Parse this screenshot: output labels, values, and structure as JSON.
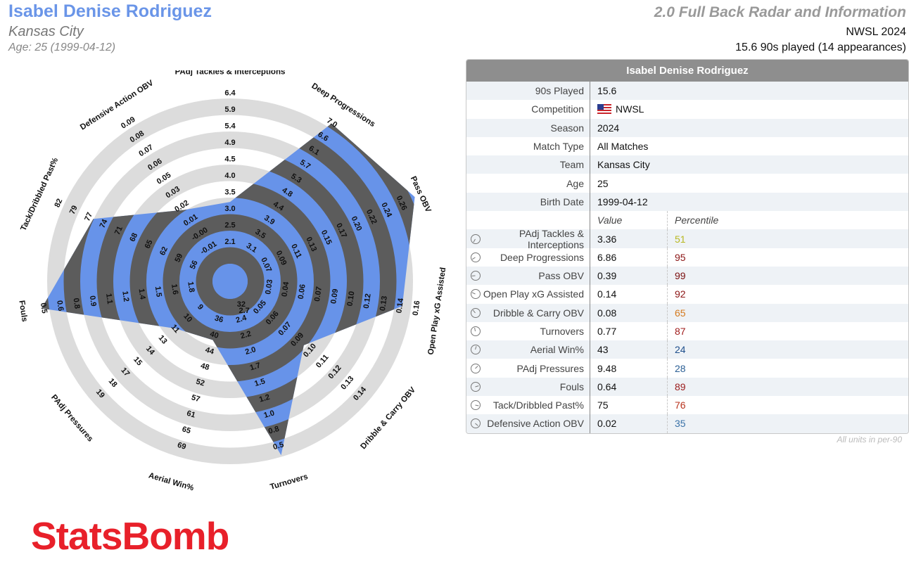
{
  "header": {
    "player_name": "Isabel Denise Rodriguez",
    "team": "Kansas City",
    "age_line": "Age: 25 (1999-04-12)",
    "title": "2.0 Full Back Radar and Information",
    "competition_season": "NWSL 2024",
    "played_line": "15.6 90s played (14 appearances)"
  },
  "colors": {
    "accent": "#6a95e8",
    "radar_fill": "#6793e9",
    "ring_dark": "#5c5c5c",
    "ring_light": "#dcdcdc",
    "logo": "#e8202a"
  },
  "chart_data": {
    "type": "radar",
    "axes": [
      {
        "name": "PAdj Tackles & Interceptions",
        "value": 3.36,
        "ticks": [
          "2.1",
          "2.5",
          "3.0",
          "3.5",
          "4.0",
          "4.5",
          "4.9",
          "5.4",
          "5.9",
          "6.4"
        ]
      },
      {
        "name": "Deep Progressions",
        "value": 6.86,
        "ticks": [
          "3.1",
          "3.5",
          "3.9",
          "4.4",
          "4.8",
          "5.3",
          "5.7",
          "6.1",
          "6.6",
          "7.0"
        ]
      },
      {
        "name": "Pass OBV",
        "value": 0.39,
        "ticks": [
          "0.07",
          "0.09",
          "0.11",
          "0.13",
          "0.15",
          "0.17",
          "0.20",
          "0.22",
          "0.24",
          "0.26"
        ]
      },
      {
        "name": "Open Play xG Assisted",
        "value": 0.14,
        "ticks": [
          "0.03",
          "0.04",
          "0.06",
          "0.07",
          "0.09",
          "0.10",
          "0.12",
          "0.13",
          "0.14",
          "0.16"
        ]
      },
      {
        "name": "Dribble & Carry OBV",
        "value": 0.08,
        "ticks": [
          "0.05",
          "0.06",
          "0.07",
          "0.09",
          "0.10",
          "0.11",
          "0.12",
          "0.13",
          "0.14"
        ]
      },
      {
        "name": "Turnovers",
        "value": 0.77,
        "ticks": [
          "2.4",
          "2.2",
          "2.0",
          "1.7",
          "1.5",
          "1.2",
          "1.0",
          "0.8",
          "0.5"
        ]
      },
      {
        "name": "Aerial Win%",
        "value": 43,
        "ticks": [
          "36",
          "40",
          "44",
          "48",
          "52",
          "57",
          "61",
          "65",
          "69"
        ]
      },
      {
        "name": "PAdj Pressures",
        "value": 9.48,
        "ticks": [
          "9",
          "10",
          "11",
          "13",
          "14",
          "15",
          "17",
          "18",
          "19"
        ]
      },
      {
        "name": "Fouls",
        "value": 0.64,
        "ticks": [
          "1.8",
          "1.6",
          "1.5",
          "1.4",
          "1.2",
          "1.1",
          "0.9",
          "0.8",
          "0.6",
          "0.5"
        ]
      },
      {
        "name": "Tack/Dribbled Past%",
        "value": 75,
        "ticks": [
          "56",
          "59",
          "62",
          "65",
          "68",
          "71",
          "74",
          "77",
          "79",
          "82"
        ]
      },
      {
        "name": "Defensive Action OBV",
        "value": 0.02,
        "ticks": [
          "-0.01",
          "-0.00",
          "0.01",
          "0.02",
          "0.03",
          "0.05",
          "0.06",
          "0.07",
          "0.08",
          "0.09"
        ]
      }
    ],
    "turnovers_inner_ticks": [
      "32",
      "2.7"
    ],
    "fill_levels": [
      0.34,
      0.935,
      1.02,
      0.86,
      0.44,
      0.9,
      0.24,
      0.3,
      0.95,
      0.73,
      0.37
    ]
  },
  "table": {
    "header": "Isabel Denise Rodriguez",
    "info": [
      {
        "label": "90s Played",
        "value": "15.6"
      },
      {
        "label": "Competition",
        "value": "NWSL",
        "flag": true
      },
      {
        "label": "Season",
        "value": "2024"
      },
      {
        "label": "Match Type",
        "value": "All Matches"
      },
      {
        "label": "Team",
        "value": "Kansas City"
      },
      {
        "label": "Age",
        "value": "25"
      },
      {
        "label": "Birth Date",
        "value": "1999-04-12"
      }
    ],
    "col_value": "Value",
    "col_percentile": "Percentile",
    "metrics": [
      {
        "label": "PAdj Tackles & Interceptions",
        "value": "3.36",
        "percentile": "51",
        "color": "#b8b820"
      },
      {
        "label": "Deep Progressions",
        "value": "6.86",
        "percentile": "95",
        "color": "#8b1414"
      },
      {
        "label": "Pass OBV",
        "value": "0.39",
        "percentile": "99",
        "color": "#7a0e0e"
      },
      {
        "label": "Open Play xG Assisted",
        "value": "0.14",
        "percentile": "92",
        "color": "#8b1414"
      },
      {
        "label": "Dribble & Carry OBV",
        "value": "0.08",
        "percentile": "65",
        "color": "#d47a1e"
      },
      {
        "label": "Turnovers",
        "value": "0.77",
        "percentile": "87",
        "color": "#a01c1c"
      },
      {
        "label": "Aerial Win%",
        "value": "43",
        "percentile": "24",
        "color": "#1f4f8c"
      },
      {
        "label": "PAdj Pressures",
        "value": "9.48",
        "percentile": "28",
        "color": "#2b5f95"
      },
      {
        "label": "Fouls",
        "value": "0.64",
        "percentile": "89",
        "color": "#9a1a1a"
      },
      {
        "label": "Tack/Dribbled Past%",
        "value": "75",
        "percentile": "76",
        "color": "#b8321c"
      },
      {
        "label": "Defensive Action OBV",
        "value": "0.02",
        "percentile": "35",
        "color": "#3a72a8"
      }
    ],
    "foot_note": "All units in per-90"
  },
  "logo_text": "StatsBomb"
}
